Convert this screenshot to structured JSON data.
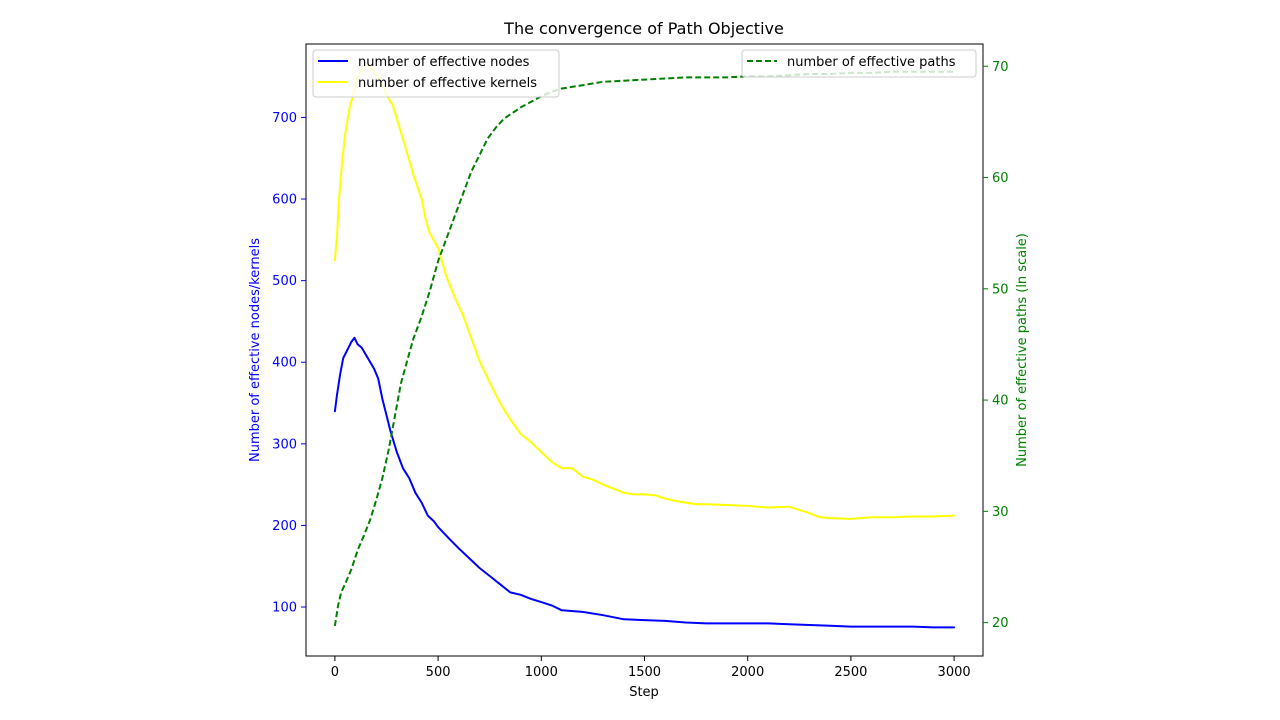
{
  "chart_data": {
    "type": "line",
    "title": "The convergence of Path Objective",
    "xlabel": "Step",
    "ylabel_left": "Number of effective nodes/kernels",
    "ylabel_right": "Number of effective paths (ln scale)",
    "xlim": [
      -140,
      3140
    ],
    "ylim_left": [
      40,
      790
    ],
    "ylim_right": [
      17,
      72
    ],
    "x_ticks": [
      0,
      500,
      1000,
      1500,
      2000,
      2500,
      3000
    ],
    "y_left_ticks": [
      100,
      200,
      300,
      400,
      500,
      600,
      700
    ],
    "y_right_ticks": [
      20,
      30,
      40,
      50,
      60,
      70
    ],
    "colors": {
      "left_axis": "#0000ff",
      "right_axis": "#008000"
    },
    "legend_left_position": "upper left",
    "legend_right_position": "upper right",
    "grid": false,
    "series": [
      {
        "name": "number of effective nodes",
        "axis": "left",
        "color": "#0000ff",
        "style": "solid",
        "points": [
          [
            0,
            340
          ],
          [
            10,
            360
          ],
          [
            25,
            385
          ],
          [
            40,
            405
          ],
          [
            60,
            415
          ],
          [
            80,
            425
          ],
          [
            95,
            430
          ],
          [
            110,
            422
          ],
          [
            130,
            418
          ],
          [
            160,
            405
          ],
          [
            190,
            392
          ],
          [
            210,
            380
          ],
          [
            230,
            355
          ],
          [
            250,
            335
          ],
          [
            270,
            315
          ],
          [
            300,
            290
          ],
          [
            330,
            270
          ],
          [
            360,
            258
          ],
          [
            390,
            240
          ],
          [
            420,
            228
          ],
          [
            450,
            212
          ],
          [
            480,
            205
          ],
          [
            500,
            198
          ],
          [
            530,
            190
          ],
          [
            560,
            182
          ],
          [
            600,
            172
          ],
          [
            650,
            160
          ],
          [
            700,
            148
          ],
          [
            750,
            138
          ],
          [
            800,
            128
          ],
          [
            850,
            118
          ],
          [
            900,
            115
          ],
          [
            950,
            110
          ],
          [
            1000,
            106
          ],
          [
            1050,
            102
          ],
          [
            1100,
            96
          ],
          [
            1200,
            94
          ],
          [
            1300,
            90
          ],
          [
            1400,
            85
          ],
          [
            1500,
            84
          ],
          [
            1600,
            83
          ],
          [
            1700,
            81
          ],
          [
            1800,
            80
          ],
          [
            1900,
            80
          ],
          [
            2000,
            80
          ],
          [
            2100,
            80
          ],
          [
            2200,
            79
          ],
          [
            2300,
            78
          ],
          [
            2400,
            77
          ],
          [
            2500,
            76
          ],
          [
            2600,
            76
          ],
          [
            2700,
            76
          ],
          [
            2800,
            76
          ],
          [
            2900,
            75
          ],
          [
            3000,
            75
          ]
        ]
      },
      {
        "name": "number of effective kernels",
        "axis": "left",
        "color": "#ffff00",
        "style": "solid",
        "points": [
          [
            0,
            525
          ],
          [
            10,
            555
          ],
          [
            20,
            600
          ],
          [
            35,
            645
          ],
          [
            50,
            680
          ],
          [
            70,
            710
          ],
          [
            90,
            730
          ],
          [
            110,
            748
          ],
          [
            130,
            760
          ],
          [
            150,
            765
          ],
          [
            170,
            762
          ],
          [
            190,
            755
          ],
          [
            210,
            750
          ],
          [
            230,
            740
          ],
          [
            250,
            728
          ],
          [
            280,
            715
          ],
          [
            310,
            690
          ],
          [
            340,
            665
          ],
          [
            380,
            630
          ],
          [
            420,
            600
          ],
          [
            440,
            575
          ],
          [
            460,
            558
          ],
          [
            500,
            540
          ],
          [
            540,
            505
          ],
          [
            580,
            480
          ],
          [
            620,
            458
          ],
          [
            660,
            430
          ],
          [
            700,
            402
          ],
          [
            750,
            375
          ],
          [
            800,
            350
          ],
          [
            850,
            330
          ],
          [
            900,
            312
          ],
          [
            950,
            302
          ],
          [
            1000,
            290
          ],
          [
            1050,
            278
          ],
          [
            1100,
            270
          ],
          [
            1150,
            270
          ],
          [
            1200,
            260
          ],
          [
            1250,
            256
          ],
          [
            1300,
            250
          ],
          [
            1350,
            245
          ],
          [
            1400,
            240
          ],
          [
            1450,
            238
          ],
          [
            1500,
            238
          ],
          [
            1550,
            237
          ],
          [
            1600,
            233
          ],
          [
            1650,
            230
          ],
          [
            1700,
            228
          ],
          [
            1750,
            226
          ],
          [
            1800,
            226
          ],
          [
            1900,
            225
          ],
          [
            2000,
            224
          ],
          [
            2100,
            222
          ],
          [
            2200,
            223
          ],
          [
            2300,
            215
          ],
          [
            2350,
            210
          ],
          [
            2400,
            209
          ],
          [
            2500,
            208
          ],
          [
            2600,
            210
          ],
          [
            2700,
            210
          ],
          [
            2800,
            211
          ],
          [
            2900,
            211
          ],
          [
            3000,
            212
          ]
        ]
      },
      {
        "name": "number of effective paths",
        "axis": "right",
        "color": "#008000",
        "style": "dashed",
        "points": [
          [
            0,
            19.7
          ],
          [
            15,
            21.5
          ],
          [
            30,
            22.7
          ],
          [
            50,
            23.5
          ],
          [
            80,
            24.8
          ],
          [
            110,
            26.5
          ],
          [
            140,
            27.8
          ],
          [
            170,
            29.2
          ],
          [
            200,
            31
          ],
          [
            230,
            33
          ],
          [
            260,
            35.5
          ],
          [
            290,
            38.5
          ],
          [
            320,
            41.5
          ],
          [
            350,
            43.5
          ],
          [
            380,
            45.5
          ],
          [
            420,
            47.5
          ],
          [
            460,
            49.8
          ],
          [
            500,
            52.5
          ],
          [
            540,
            54.5
          ],
          [
            580,
            56.5
          ],
          [
            620,
            58.5
          ],
          [
            660,
            60.5
          ],
          [
            700,
            62
          ],
          [
            740,
            63.5
          ],
          [
            780,
            64.5
          ],
          [
            820,
            65.3
          ],
          [
            860,
            65.8
          ],
          [
            900,
            66.3
          ],
          [
            950,
            66.8
          ],
          [
            1000,
            67.3
          ],
          [
            1050,
            67.7
          ],
          [
            1100,
            68
          ],
          [
            1200,
            68.3
          ],
          [
            1300,
            68.6
          ],
          [
            1400,
            68.7
          ],
          [
            1500,
            68.8
          ],
          [
            1600,
            68.9
          ],
          [
            1700,
            69
          ],
          [
            1800,
            69
          ],
          [
            1900,
            69
          ],
          [
            2000,
            69.1
          ],
          [
            2100,
            69.1
          ],
          [
            2200,
            69.2
          ],
          [
            2300,
            69.3
          ],
          [
            2400,
            69.3
          ],
          [
            2500,
            69.4
          ],
          [
            2600,
            69.4
          ],
          [
            2700,
            69.5
          ],
          [
            2800,
            69.5
          ],
          [
            2900,
            69.5
          ],
          [
            3000,
            69.5
          ]
        ]
      }
    ]
  }
}
